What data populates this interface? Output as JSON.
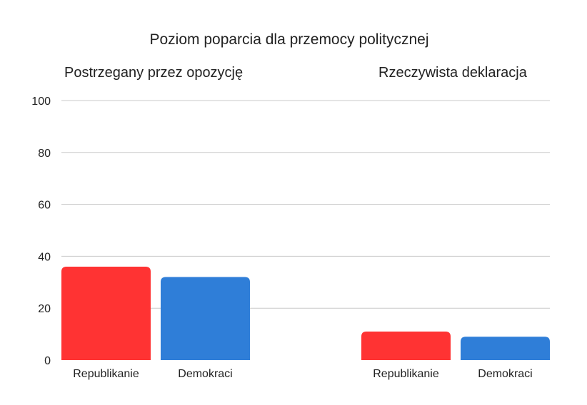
{
  "chart_data": {
    "type": "bar",
    "title": "Poziom poparcia dla przemocy politycznej",
    "ylim": [
      0,
      100
    ],
    "yticks": [
      0,
      20,
      40,
      60,
      80,
      100
    ],
    "grid": true,
    "groups": [
      {
        "title": "Postrzegany przez opozycję",
        "categories": [
          "Republikanie",
          "Demokraci"
        ],
        "values": [
          36,
          32
        ]
      },
      {
        "title": "Rzeczywista deklaracja",
        "categories": [
          "Republikanie",
          "Demokraci"
        ],
        "values": [
          11,
          9
        ]
      }
    ],
    "colors": {
      "Republikanie": "#ff3333",
      "Demokraci": "#2f7ed8"
    }
  }
}
